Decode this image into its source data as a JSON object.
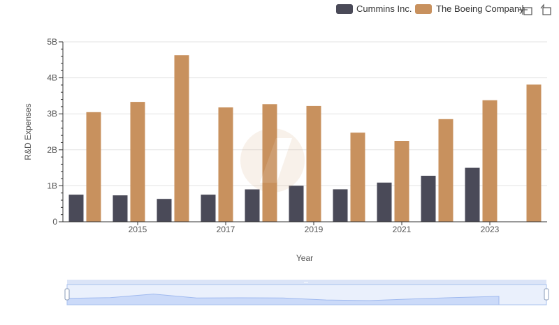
{
  "toolbar": {
    "zoom_icon": "zoom-select-icon",
    "restore_icon": "restore-icon"
  },
  "chart_data": {
    "type": "bar",
    "title": "",
    "xlabel": "Year",
    "ylabel": "R&D Expenses",
    "ylim": [
      0,
      5000000000
    ],
    "y_ticks": [
      {
        "value": 0,
        "label": "0"
      },
      {
        "value": 1000000000,
        "label": "1B"
      },
      {
        "value": 2000000000,
        "label": "2B"
      },
      {
        "value": 3000000000,
        "label": "3B"
      },
      {
        "value": 4000000000,
        "label": "4B"
      },
      {
        "value": 5000000000,
        "label": "5B"
      }
    ],
    "x": [
      2014,
      2015,
      2016,
      2017,
      2018,
      2019,
      2020,
      2021,
      2022,
      2023,
      2024
    ],
    "x_tick_labels": [
      "2015",
      "2017",
      "2019",
      "2021",
      "2023"
    ],
    "x_tick_years": [
      2015,
      2017,
      2019,
      2021,
      2023
    ],
    "grid": true,
    "legend_position": "top-right",
    "series": [
      {
        "name": "Cummins Inc.",
        "color": "#4a4a58",
        "values": [
          754000000,
          735000000,
          636000000,
          754000000,
          902000000,
          1001000000,
          903000000,
          1090000000,
          1280000000,
          1500000000,
          null
        ]
      },
      {
        "name": "The Boeing Company",
        "color": "#c8915e",
        "values": [
          3047000000,
          3331000000,
          4627000000,
          3179000000,
          3269000000,
          3219000000,
          2476000000,
          2249000000,
          2852000000,
          3377000000,
          3812000000
        ]
      }
    ],
    "navigator": {
      "color": "#d6e2fb",
      "series_values": [
        3047000000,
        3331000000,
        4627000000,
        3179000000,
        3269000000,
        3219000000,
        2476000000,
        2249000000,
        2852000000,
        3377000000,
        3812000000
      ]
    }
  }
}
